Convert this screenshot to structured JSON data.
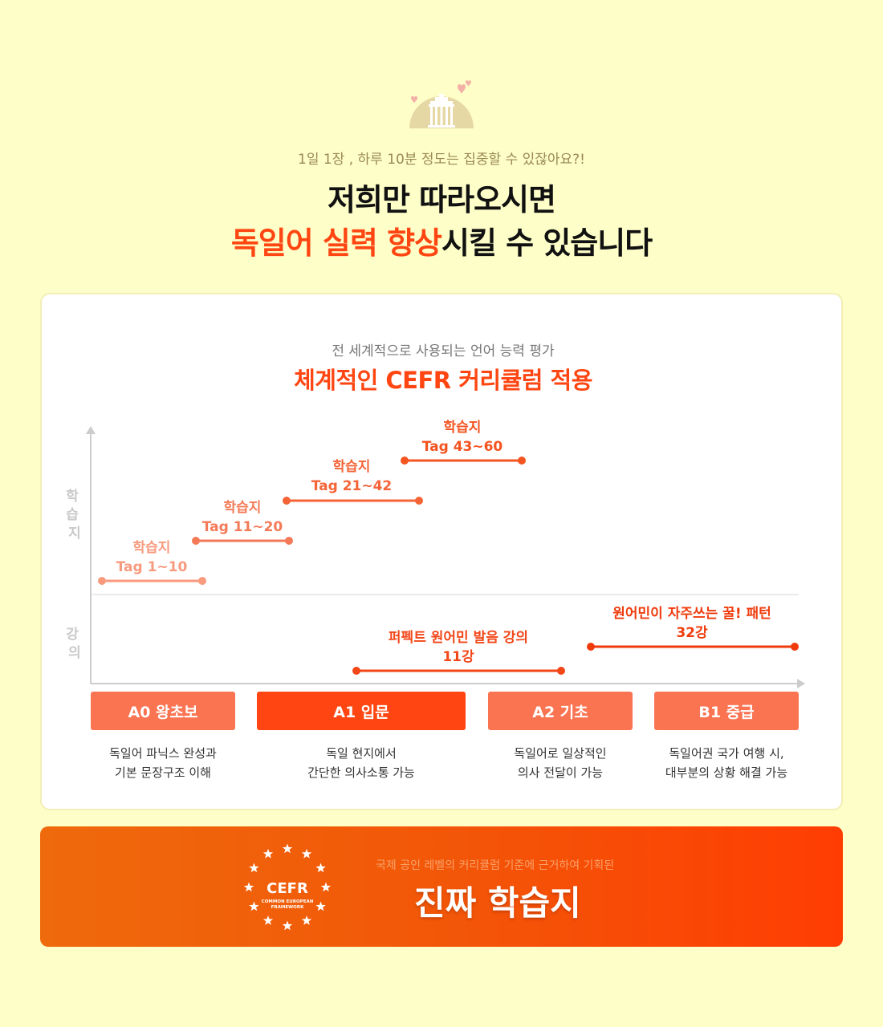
{
  "header": {
    "subtitle": "1일 1장 , 하루 10분 정도는 집중할 수 있잖아요?!",
    "headline_line1": "저희만 따라오시면",
    "headline_line2_highlight": "독일어 실력 향상",
    "headline_line2_rest": "시킬 수 있습니다"
  },
  "card": {
    "subtitle": "전 세계적으로 사용되는 언어 능력 평가",
    "title": "체계적인 CEFR 커리큘럼 적용"
  },
  "chart_data": {
    "type": "timeline",
    "y_labels": [
      "학습지",
      "강의"
    ],
    "rows": {
      "worksheets": [
        {
          "title": "학습지",
          "range": "Tag 1~10",
          "color": "#f89a7e"
        },
        {
          "title": "학습지",
          "range": "Tag 11~20",
          "color": "#f47a57"
        },
        {
          "title": "학습지",
          "range": "Tag 21~42",
          "color": "#f46437"
        },
        {
          "title": "학습지",
          "range": "Tag 43~60",
          "color": "#f45420"
        }
      ],
      "lectures": [
        {
          "title": "퍼펙트 원어민 발음 강의",
          "count": "11강",
          "color": "#f24617"
        },
        {
          "title": "원어민이 자주쓰는 꿀! 패턴",
          "count": "32강",
          "color": "#ef3b0c"
        }
      ]
    },
    "levels": [
      {
        "code": "A0",
        "label": "A0 왕초보",
        "color": "#fa7452",
        "desc1": "독일어 파닉스 완성과",
        "desc2": "기본 문장구조 이해"
      },
      {
        "code": "A1",
        "label": "A1 입문",
        "color": "#ff4612",
        "desc1": "독일 현지에서",
        "desc2": "간단한 의사소통 가능"
      },
      {
        "code": "A2",
        "label": "A2 기초",
        "color": "#fa7452",
        "desc1": "독일어로 일상적인",
        "desc2": "의사 전달이 가능"
      },
      {
        "code": "B1",
        "label": "B1 중급",
        "color": "#fa7452",
        "desc1": "독일어권 국가 여행 시,",
        "desc2": "대부분의 상황 해결 가능"
      }
    ]
  },
  "banner": {
    "emblem_title": "CEFR",
    "emblem_sub1": "COMMON EUROPEAN",
    "emblem_sub2": "FRAMEWORK",
    "subtitle": "국제 공인 레벨의 커리큘럼 기준에 근거하여 기획된",
    "title": "진짜 학습지"
  },
  "colors": {
    "accent": "#ff4612",
    "background": "#fefec8",
    "axis": "#cccccc"
  }
}
